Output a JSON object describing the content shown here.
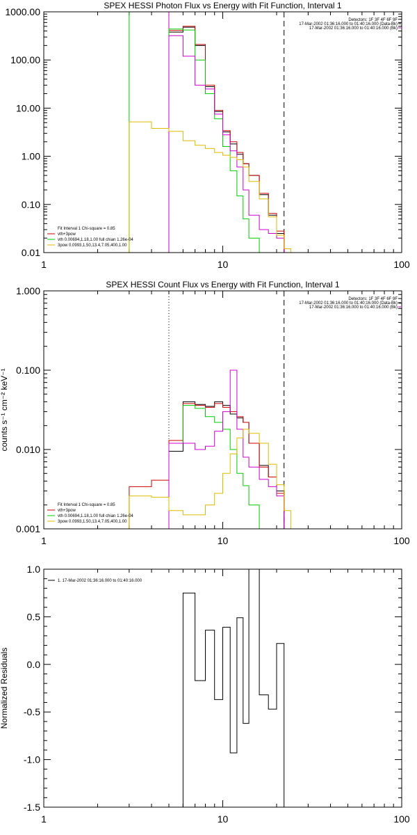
{
  "chart_data": [
    {
      "type": "line",
      "title": "SPEX HESSI Photon Flux vs Energy with Fit Function, Interval 1",
      "xlabel": "",
      "ylabel": "",
      "xscale": "log",
      "yscale": "log",
      "xlim": [
        1,
        100
      ],
      "ylim": [
        0.01,
        1000
      ],
      "xticks": [
        "1",
        "10",
        "100"
      ],
      "yticks": [
        "1000.00",
        "100.00",
        "10.00",
        "1.00",
        "0.10",
        "0.01"
      ],
      "ytick_values": [
        1000,
        100,
        10,
        1,
        0.1,
        0.01
      ],
      "header": [
        "Detectors: 1F 3F 4F 6F 9F",
        "17-Mar-2002 01:36:16.000 to 01:40:16.000 (Data-Bk)",
        "17-Mar-2002 01:36:16.000 to 01:40:16.000 (Bk)"
      ],
      "header_colors": [
        "",
        "#000000",
        "#cc00cc"
      ],
      "legend": [
        {
          "text": "Fit Interval 1   Chi-square = 0.85",
          "color": ""
        },
        {
          "text": "vth+3pow",
          "color": "#cc0000"
        },
        {
          "text": "vth 0.00694,1.18,1.00  full chian 1.26e-04",
          "color": "#00cc00"
        },
        {
          "text": "3pow 0.0993,1.50,13.4,7.05,400,1.00",
          "color": "#ddbb00"
        }
      ],
      "vlines": [
        {
          "x": 3.0,
          "color": "#00cc00",
          "dash": "solid",
          "span": "full"
        },
        {
          "x": 5.0,
          "color": "#00cc00",
          "dash": "2,3",
          "span": "full"
        },
        {
          "x": 5.0,
          "color": "#cc00cc",
          "dash": "solid",
          "span": "full"
        },
        {
          "x": 22.0,
          "color": "#000000",
          "dash": "8,5",
          "span": "full"
        }
      ],
      "series": [
        {
          "name": "data",
          "color": "#000000",
          "edges": [
            5,
            6,
            7,
            8,
            9,
            10,
            11,
            12,
            13,
            14,
            16,
            18,
            20,
            22
          ],
          "values": [
            380,
            480,
            200,
            28,
            8.5,
            3.2,
            1.8,
            1.1,
            0.7,
            0.4,
            0.16,
            0.06,
            0.025
          ]
        },
        {
          "name": "vth+3pow",
          "color": "#cc0000",
          "edges": [
            5,
            6,
            7,
            8,
            9,
            10,
            11,
            12,
            13,
            14,
            16,
            18,
            20,
            22
          ],
          "values": [
            410,
            500,
            210,
            30,
            9.0,
            3.4,
            2.0,
            1.2,
            0.7,
            0.4,
            0.17,
            0.065,
            0.028
          ]
        },
        {
          "name": "vth",
          "color": "#00cc00",
          "edges": [
            5,
            6,
            7,
            8,
            9,
            10,
            11,
            12,
            13,
            14,
            16
          ],
          "values": [
            440,
            420,
            100,
            20,
            6.0,
            1.6,
            0.5,
            0.15,
            0.05,
            0.02
          ]
        },
        {
          "name": "bkg",
          "color": "#cc00cc",
          "edges": [
            5,
            6,
            7,
            8,
            9,
            10,
            11,
            12,
            13,
            14,
            16,
            18,
            20,
            22
          ],
          "values": [
            320,
            120,
            30,
            25,
            7.5,
            2.8,
            1.3,
            0.6,
            0.2,
            0.06,
            0.03,
            0.025,
            0.02
          ]
        },
        {
          "name": "3pow",
          "color": "#ddbb00",
          "edges": [
            3,
            4,
            5,
            6,
            7,
            8,
            9,
            10,
            11,
            12,
            13,
            14,
            16,
            18,
            20,
            22,
            24,
            25
          ],
          "values": [
            5.2,
            3.8,
            3.3,
            2.1,
            1.7,
            1.45,
            1.2,
            1.05,
            0.95,
            0.85,
            0.6,
            0.3,
            0.13,
            0.055,
            0.023,
            0.012,
            0.01
          ]
        }
      ]
    },
    {
      "type": "line",
      "title": "SPEX HESSI Count Flux vs Energy with Fit Function, Interval 1",
      "xlabel": "",
      "ylabel": "counts s⁻¹ cm⁻² keV⁻¹",
      "xscale": "log",
      "yscale": "log",
      "xlim": [
        1,
        100
      ],
      "ylim": [
        0.001,
        1
      ],
      "xticks": [
        "1",
        "10",
        "100"
      ],
      "yticks": [
        "1.000",
        "0.100",
        "0.010",
        "0.001"
      ],
      "ytick_values": [
        1,
        0.1,
        0.01,
        0.001
      ],
      "header": [
        "Detectors: 1F 3F 4F 6F 9F",
        "17-Mar-2002 01:36:16.000 to 01:40:16.000 (Data-Bk)",
        "17-Mar-2002 01:36:16.000 to 01:40:16.000 (Bk)"
      ],
      "header_colors": [
        "",
        "#000000",
        "#cc00cc"
      ],
      "legend": [
        {
          "text": "Fit Interval 1   Chi-square = 0.85",
          "color": ""
        },
        {
          "text": "vth+3pow",
          "color": "#cc0000"
        },
        {
          "text": "vth 0.00694,1.18,1.00  full chian 1.26e-04",
          "color": "#00cc00"
        },
        {
          "text": "3pow 0.0993,1.50,13.4,7.05,400,1.00",
          "color": "#ddbb00"
        }
      ],
      "vlines": [
        {
          "x": 5.0,
          "color": "#000000",
          "dash": "1,3",
          "span": "full"
        },
        {
          "x": 22.0,
          "color": "#000000",
          "dash": "8,5",
          "span": "full"
        }
      ],
      "series": [
        {
          "name": "data",
          "color": "#000000",
          "edges": [
            5,
            6,
            7,
            8,
            9,
            10,
            11,
            12,
            13,
            14,
            16,
            18,
            20,
            22
          ],
          "values": [
            0.0095,
            0.04,
            0.037,
            0.035,
            0.04,
            0.036,
            0.028,
            0.025,
            0.022,
            0.012,
            0.0063,
            0.0045,
            0.003
          ]
        },
        {
          "name": "vth+3pow",
          "color": "#cc0000",
          "edges": [
            3,
            4,
            5,
            6,
            7,
            8,
            9,
            10,
            11,
            12,
            13,
            14,
            16,
            18,
            20,
            22
          ],
          "values": [
            0.0034,
            0.0041,
            0.013,
            0.038,
            0.036,
            0.034,
            0.038,
            0.034,
            0.03,
            0.026,
            0.022,
            0.012,
            0.006,
            0.0045,
            0.0028
          ]
        },
        {
          "name": "vth",
          "color": "#00cc00",
          "edges": [
            4,
            5,
            6,
            7,
            8,
            9,
            10,
            11,
            12,
            13,
            14,
            16,
            18
          ],
          "values": [
            0.001,
            0.012,
            0.036,
            0.033,
            0.026,
            0.022,
            0.018,
            0.01,
            0.005,
            0.0035,
            0.002,
            0.001
          ]
        },
        {
          "name": "bkg",
          "color": "#cc00cc",
          "edges": [
            5,
            6,
            7,
            8,
            9,
            10,
            11,
            12,
            13,
            14,
            16,
            18,
            20,
            22
          ],
          "values": [
            0.012,
            0.012,
            0.01,
            0.011,
            0.017,
            0.03,
            0.1,
            0.018,
            0.008,
            0.006,
            0.0042,
            0.0034,
            0.0026
          ]
        },
        {
          "name": "3pow",
          "color": "#ddbb00",
          "edges": [
            3,
            4,
            5,
            6,
            7,
            8,
            9,
            10,
            11,
            12,
            13,
            14,
            16,
            18,
            20,
            22,
            24,
            25
          ],
          "values": [
            0.0026,
            0.0025,
            0.0017,
            0.0015,
            0.0015,
            0.002,
            0.0028,
            0.005,
            0.0088,
            0.014,
            0.018,
            0.016,
            0.012,
            0.0065,
            0.0036,
            0.0017,
            0.001
          ]
        }
      ]
    },
    {
      "type": "line",
      "title": "",
      "xlabel": "",
      "ylabel": "Normalized Residuals",
      "xscale": "log",
      "yscale": "linear",
      "xlim": [
        1,
        100
      ],
      "ylim": [
        -1.5,
        1.0
      ],
      "xticks": [
        "1",
        "10",
        "100"
      ],
      "yticks": [
        "1.0",
        "0.5",
        "0.0",
        "-0.5",
        "-1.0",
        "-1.5"
      ],
      "ytick_values": [
        1.0,
        0.5,
        0.0,
        -0.5,
        -1.0,
        -1.5
      ],
      "header": [],
      "header_colors": [],
      "legend": [
        {
          "text": "1. 17-Mar-2002 01:36:16.000 to 01:40:16.000",
          "color": "#000000"
        }
      ],
      "vlines": [],
      "series": [
        {
          "name": "residuals",
          "color": "#000000",
          "edges": [
            5,
            6,
            7,
            8,
            9,
            10,
            11,
            12,
            13,
            14,
            16,
            18,
            20,
            22
          ],
          "values": [
            -1.5,
            0.75,
            -0.17,
            0.36,
            -0.37,
            0.39,
            -0.93,
            0.49,
            -0.62,
            1.0,
            -0.32,
            -0.47,
            0.22
          ]
        }
      ]
    }
  ]
}
